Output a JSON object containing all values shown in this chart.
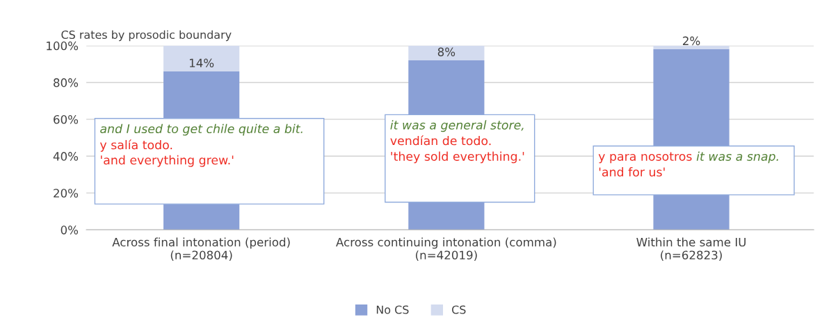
{
  "chart_data": {
    "type": "bar",
    "stacked": true,
    "title": "CS rates by prosodic boundary",
    "categories": [
      "Across final intonation (period)\n(n=20804)",
      "Across continuing intonation (comma)\n(n=42019)",
      "Within the same IU\n(n=62823)"
    ],
    "series": [
      {
        "name": "No CS",
        "color": "#8aa0d6",
        "values": [
          86,
          92,
          98
        ]
      },
      {
        "name": "CS",
        "color": "#d3dbef",
        "values": [
          14,
          8,
          2
        ],
        "value_labels": [
          "14%",
          "8%",
          "2%"
        ]
      }
    ],
    "ylim": [
      0,
      100
    ],
    "yticks": [
      {
        "value": 0,
        "label": "0%"
      },
      {
        "value": 20,
        "label": "20%"
      },
      {
        "value": 40,
        "label": "40%"
      },
      {
        "value": 60,
        "label": "60%"
      },
      {
        "value": 80,
        "label": "80%"
      },
      {
        "value": 100,
        "label": "100%"
      }
    ],
    "grid": "y",
    "legend": "bottom",
    "annotations": [
      "and I used to get chile quite a bit.",
      "y salía todo.",
      "'and everything grew.'",
      "it was a general store,",
      "vendían de todo.",
      "'they sold everything.'",
      "y para nosotros",
      "it was a snap.",
      "'and for us'"
    ]
  }
}
